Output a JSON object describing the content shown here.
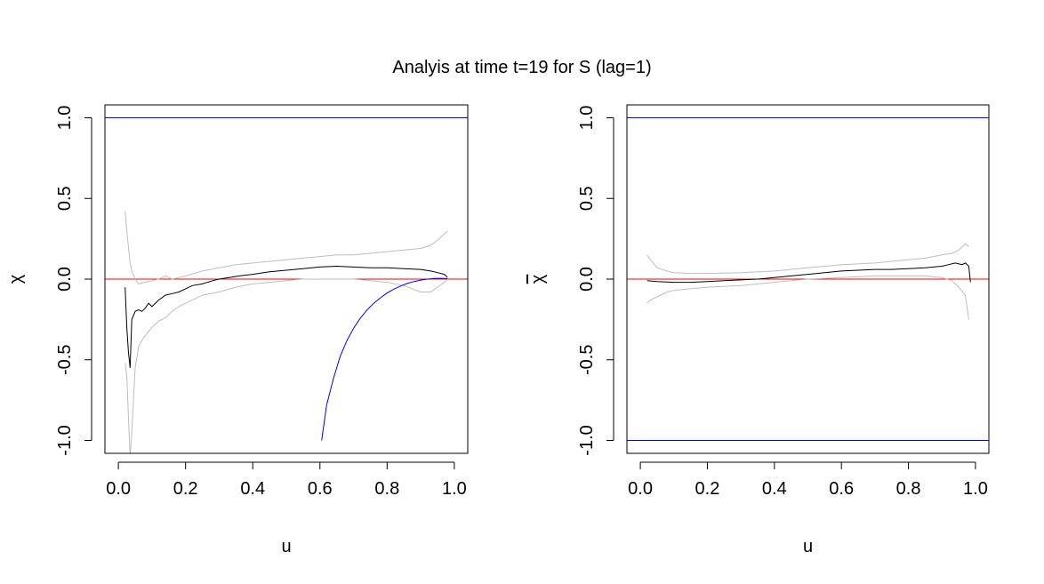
{
  "title": "Analyis at time t=19 for S (lag=1)",
  "colors": {
    "estimate": "#000000",
    "confidence": "#bebebe",
    "zero_line": "#ff0000",
    "bound_line": "#0000ff",
    "frame": "#000000"
  },
  "chart_data": [
    {
      "type": "line",
      "title": "",
      "xlabel": "u",
      "ylabel": "χ",
      "ylabel_overline": false,
      "xlim": [
        0.0,
        1.0
      ],
      "ylim": [
        -1.0,
        1.0
      ],
      "xticks": [
        0.0,
        0.2,
        0.4,
        0.6,
        0.8,
        1.0
      ],
      "xtick_labels": [
        "0.0",
        "0.2",
        "0.4",
        "0.6",
        "0.8",
        "1.0"
      ],
      "yticks": [
        -1.0,
        -0.5,
        0.0,
        0.5,
        1.0
      ],
      "ytick_labels": [
        "-1.0",
        "-0.5",
        "0.0",
        "0.5",
        "1.0"
      ],
      "grid": false,
      "hlines": [
        {
          "y": 1.0,
          "color": "blue"
        },
        {
          "y": 0.0,
          "color": "red"
        }
      ],
      "series": [
        {
          "role": "estimate",
          "x": [
            0.02,
            0.025,
            0.03,
            0.035,
            0.04,
            0.05,
            0.06,
            0.07,
            0.08,
            0.09,
            0.1,
            0.12,
            0.14,
            0.16,
            0.18,
            0.2,
            0.22,
            0.25,
            0.28,
            0.3,
            0.33,
            0.36,
            0.4,
            0.45,
            0.5,
            0.55,
            0.6,
            0.65,
            0.7,
            0.75,
            0.8,
            0.85,
            0.9,
            0.93,
            0.95,
            0.97,
            0.98
          ],
          "y": [
            -0.05,
            -0.3,
            -0.45,
            -0.55,
            -0.25,
            -0.2,
            -0.19,
            -0.2,
            -0.18,
            -0.15,
            -0.17,
            -0.13,
            -0.1,
            -0.09,
            -0.08,
            -0.06,
            -0.04,
            -0.03,
            -0.01,
            0.0,
            0.01,
            0.02,
            0.03,
            0.045,
            0.055,
            0.065,
            0.075,
            0.08,
            0.075,
            0.07,
            0.07,
            0.065,
            0.06,
            0.05,
            0.04,
            0.03,
            0.01
          ]
        },
        {
          "role": "upper-ci",
          "x": [
            0.02,
            0.025,
            0.03,
            0.035,
            0.04,
            0.05,
            0.06,
            0.08,
            0.1,
            0.12,
            0.14,
            0.16,
            0.2,
            0.25,
            0.3,
            0.35,
            0.4,
            0.45,
            0.5,
            0.55,
            0.6,
            0.65,
            0.7,
            0.75,
            0.8,
            0.85,
            0.9,
            0.93,
            0.95,
            0.97,
            0.98
          ],
          "y": [
            0.42,
            0.3,
            0.2,
            0.1,
            0.05,
            0.0,
            -0.03,
            -0.02,
            -0.01,
            0.0,
            0.02,
            0.0,
            0.02,
            0.05,
            0.07,
            0.09,
            0.1,
            0.11,
            0.12,
            0.13,
            0.14,
            0.15,
            0.15,
            0.16,
            0.17,
            0.18,
            0.19,
            0.21,
            0.24,
            0.28,
            0.3
          ]
        },
        {
          "role": "lower-ci",
          "x": [
            0.02,
            0.025,
            0.03,
            0.035,
            0.04,
            0.05,
            0.06,
            0.07,
            0.08,
            0.1,
            0.12,
            0.14,
            0.16,
            0.18,
            0.2,
            0.25,
            0.3,
            0.35,
            0.4,
            0.45,
            0.5,
            0.55,
            0.6,
            0.65,
            0.7,
            0.75,
            0.8,
            0.85,
            0.9,
            0.93,
            0.95,
            0.97,
            0.98
          ],
          "y": [
            -0.52,
            -0.6,
            -0.85,
            -1.1,
            -0.95,
            -0.55,
            -0.42,
            -0.38,
            -0.35,
            -0.3,
            -0.26,
            -0.24,
            -0.2,
            -0.17,
            -0.15,
            -0.1,
            -0.08,
            -0.05,
            -0.03,
            -0.02,
            -0.01,
            0.0,
            0.0,
            0.0,
            0.0,
            -0.01,
            -0.02,
            -0.04,
            -0.08,
            -0.08,
            -0.05,
            -0.02,
            0.0
          ]
        },
        {
          "role": "lower-bound",
          "x": [
            0.605,
            0.62,
            0.64,
            0.66,
            0.68,
            0.7,
            0.72,
            0.74,
            0.76,
            0.78,
            0.8,
            0.82,
            0.84,
            0.86,
            0.88,
            0.9,
            0.92,
            0.94,
            0.96,
            0.98
          ],
          "y": [
            -1.0,
            -0.78,
            -0.617,
            -0.481,
            -0.382,
            -0.305,
            -0.243,
            -0.192,
            -0.15,
            -0.116,
            -0.086,
            -0.062,
            -0.043,
            -0.027,
            -0.015,
            -0.006,
            0.0,
            0.004,
            0.005,
            0.003
          ]
        }
      ]
    },
    {
      "type": "line",
      "title": "",
      "xlabel": "u",
      "ylabel": "χ",
      "ylabel_overline": true,
      "xlim": [
        0.0,
        1.0
      ],
      "ylim": [
        -1.0,
        1.0
      ],
      "xticks": [
        0.0,
        0.2,
        0.4,
        0.6,
        0.8,
        1.0
      ],
      "xtick_labels": [
        "0.0",
        "0.2",
        "0.4",
        "0.6",
        "0.8",
        "1.0"
      ],
      "yticks": [
        -1.0,
        -0.5,
        0.0,
        0.5,
        1.0
      ],
      "ytick_labels": [
        "-1.0",
        "-0.5",
        "0.0",
        "0.5",
        "1.0"
      ],
      "grid": false,
      "hlines": [
        {
          "y": 1.0,
          "color": "blue"
        },
        {
          "y": -1.0,
          "color": "blue"
        },
        {
          "y": 0.0,
          "color": "red"
        }
      ],
      "series": [
        {
          "role": "estimate",
          "x": [
            0.02,
            0.05,
            0.1,
            0.15,
            0.2,
            0.25,
            0.3,
            0.35,
            0.4,
            0.45,
            0.5,
            0.55,
            0.6,
            0.65,
            0.7,
            0.75,
            0.8,
            0.85,
            0.9,
            0.92,
            0.94,
            0.96,
            0.97,
            0.98,
            0.985
          ],
          "y": [
            -0.01,
            -0.015,
            -0.02,
            -0.02,
            -0.015,
            -0.01,
            -0.005,
            0.0,
            0.01,
            0.02,
            0.03,
            0.04,
            0.05,
            0.055,
            0.06,
            0.06,
            0.065,
            0.07,
            0.08,
            0.09,
            0.1,
            0.09,
            0.1,
            0.08,
            -0.02
          ]
        },
        {
          "role": "upper-ci",
          "x": [
            0.02,
            0.03,
            0.05,
            0.08,
            0.1,
            0.15,
            0.2,
            0.3,
            0.4,
            0.5,
            0.6,
            0.7,
            0.8,
            0.85,
            0.9,
            0.93,
            0.95,
            0.97,
            0.98
          ],
          "y": [
            0.15,
            0.12,
            0.07,
            0.05,
            0.04,
            0.035,
            0.035,
            0.04,
            0.05,
            0.07,
            0.09,
            0.1,
            0.12,
            0.13,
            0.15,
            0.16,
            0.18,
            0.22,
            0.2
          ]
        },
        {
          "role": "lower-ci",
          "x": [
            0.02,
            0.03,
            0.05,
            0.08,
            0.1,
            0.15,
            0.2,
            0.3,
            0.4,
            0.5,
            0.6,
            0.7,
            0.8,
            0.85,
            0.9,
            0.93,
            0.95,
            0.97,
            0.98
          ],
          "y": [
            -0.15,
            -0.13,
            -0.11,
            -0.08,
            -0.07,
            -0.06,
            -0.05,
            -0.04,
            -0.02,
            0.0,
            0.01,
            0.02,
            0.02,
            0.02,
            0.01,
            -0.01,
            -0.05,
            -0.1,
            -0.25
          ]
        }
      ]
    }
  ]
}
